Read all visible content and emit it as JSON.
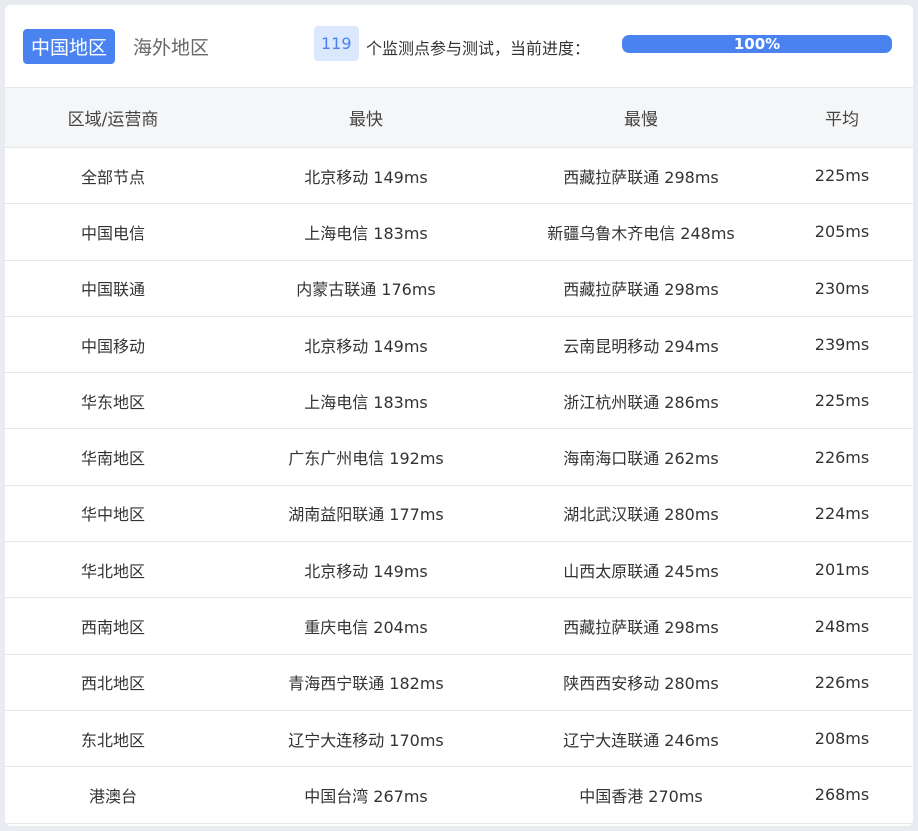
{
  "tabs": [
    {
      "label": "中国地区",
      "active": true
    },
    {
      "label": "海外地区",
      "active": false
    }
  ],
  "summary": {
    "count": "119",
    "text": "个监测点参与测试，当前进度：",
    "progress_label": "100%",
    "progress": 100
  },
  "colors": {
    "accent": "#4a83f0"
  },
  "table": {
    "headers": [
      "区域/运营商",
      "最快",
      "最慢",
      "平均"
    ],
    "rows": [
      [
        "全部节点",
        "北京移动 149ms",
        "西藏拉萨联通 298ms",
        "225ms"
      ],
      [
        "中国电信",
        "上海电信 183ms",
        "新疆乌鲁木齐电信 248ms",
        "205ms"
      ],
      [
        "中国联通",
        "内蒙古联通 176ms",
        "西藏拉萨联通 298ms",
        "230ms"
      ],
      [
        "中国移动",
        "北京移动 149ms",
        "云南昆明移动 294ms",
        "239ms"
      ],
      [
        "华东地区",
        "上海电信 183ms",
        "浙江杭州联通 286ms",
        "225ms"
      ],
      [
        "华南地区",
        "广东广州电信 192ms",
        "海南海口联通 262ms",
        "226ms"
      ],
      [
        "华中地区",
        "湖南益阳联通 177ms",
        "湖北武汉联通 280ms",
        "224ms"
      ],
      [
        "华北地区",
        "北京移动 149ms",
        "山西太原联通 245ms",
        "201ms"
      ],
      [
        "西南地区",
        "重庆电信 204ms",
        "西藏拉萨联通 298ms",
        "248ms"
      ],
      [
        "西北地区",
        "青海西宁联通 182ms",
        "陕西西安移动 280ms",
        "226ms"
      ],
      [
        "东北地区",
        "辽宁大连移动 170ms",
        "辽宁大连联通 246ms",
        "208ms"
      ],
      [
        "港澳台",
        "中国台湾 267ms",
        "中国香港 270ms",
        "268ms"
      ]
    ]
  }
}
